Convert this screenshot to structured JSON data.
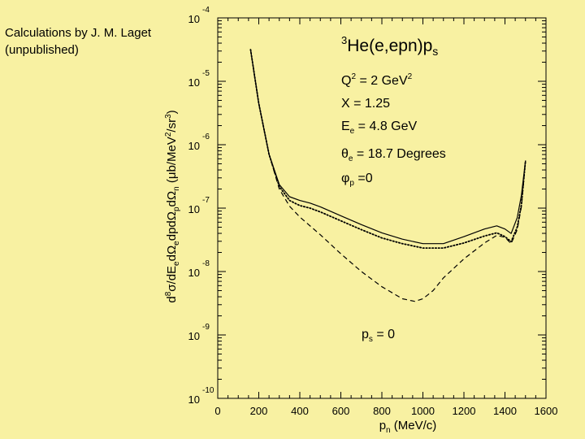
{
  "credit": {
    "line1": "Calculations by J. M. Laget",
    "line2": "(unpublished)"
  },
  "colors": {
    "background": "#f8f1a2",
    "ink": "#000000"
  },
  "chart_data": {
    "type": "line",
    "title": "3He(e,epn)ps",
    "xlabel": "pn (MeV/c)",
    "ylabel": "d8σ/dEe dΩe dp dΩp dΩn (μb/MeV²/sr³)",
    "xlim": [
      0,
      1600
    ],
    "ylim_log10": [
      -10,
      -4
    ],
    "yscale": "log",
    "grid": false,
    "x_ticks": [
      "0",
      "200",
      "400",
      "600",
      "800",
      "1000",
      "1200",
      "1400",
      "1600"
    ],
    "y_ticks": [
      {
        "base": "10",
        "exp": "-4"
      },
      {
        "base": "10",
        "exp": "-5"
      },
      {
        "base": "10",
        "exp": "-6"
      },
      {
        "base": "10",
        "exp": "-7"
      },
      {
        "base": "10",
        "exp": "-8"
      },
      {
        "base": "10",
        "exp": "-9"
      },
      {
        "base": "10",
        "exp": "-10"
      }
    ],
    "annotations": {
      "q2": "Q2 = 2 GeV2",
      "x": "X = 1.25",
      "ee": "Ee = 4.8 GeV",
      "theta": "θe = 18.7 Degrees",
      "phi": "φp =0",
      "ps": "ps = 0"
    },
    "series": [
      {
        "style": "solid",
        "x": [
          160,
          200,
          250,
          300,
          350,
          400,
          450,
          500,
          600,
          700,
          800,
          900,
          1000,
          1100,
          1200,
          1300,
          1360,
          1400,
          1430,
          1460,
          1480,
          1500
        ],
        "log10_y": [
          -4.5,
          -5.35,
          -6.15,
          -6.63,
          -6.82,
          -6.88,
          -6.92,
          -6.98,
          -7.12,
          -7.26,
          -7.39,
          -7.49,
          -7.56,
          -7.56,
          -7.45,
          -7.33,
          -7.28,
          -7.33,
          -7.4,
          -7.15,
          -6.8,
          -6.25
        ]
      },
      {
        "style": "dotted",
        "x": [
          160,
          200,
          250,
          300,
          350,
          400,
          450,
          500,
          600,
          700,
          800,
          900,
          1000,
          1100,
          1200,
          1300,
          1360,
          1400,
          1430,
          1460,
          1480,
          1500
        ],
        "log10_y": [
          -4.5,
          -5.35,
          -6.15,
          -6.66,
          -6.88,
          -6.96,
          -7.0,
          -7.06,
          -7.2,
          -7.34,
          -7.47,
          -7.56,
          -7.63,
          -7.63,
          -7.55,
          -7.44,
          -7.39,
          -7.45,
          -7.53,
          -7.3,
          -6.95,
          -6.25
        ]
      },
      {
        "style": "dashed",
        "x": [
          160,
          200,
          250,
          300,
          350,
          400,
          500,
          600,
          700,
          800,
          900,
          960,
          1000,
          1050,
          1100,
          1200,
          1300,
          1360,
          1400,
          1430,
          1460,
          1480,
          1500
        ],
        "log10_y": [
          -4.5,
          -5.35,
          -6.15,
          -6.7,
          -6.97,
          -7.14,
          -7.42,
          -7.72,
          -8.0,
          -8.24,
          -8.43,
          -8.47,
          -8.43,
          -8.3,
          -8.1,
          -7.8,
          -7.55,
          -7.43,
          -7.46,
          -7.56,
          -7.34,
          -6.98,
          -6.25
        ]
      }
    ]
  }
}
